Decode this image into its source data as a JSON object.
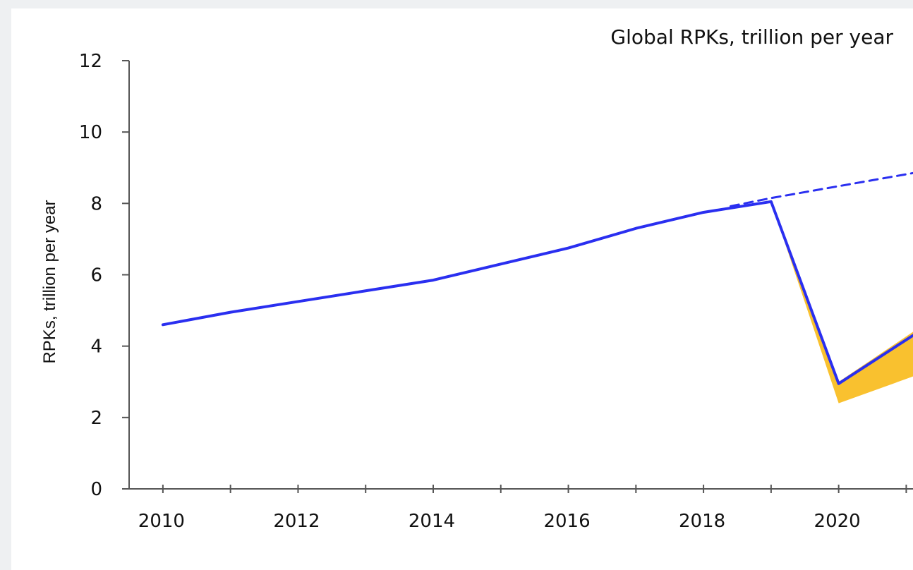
{
  "chart_data": {
    "type": "line",
    "title": "Global RPKs, trillion per year",
    "xlabel": "",
    "ylabel": "RPKs, trillion per year",
    "xlim": [
      2009.5,
      2021.1
    ],
    "ylim": [
      0,
      12
    ],
    "x_ticks": [
      2010,
      2012,
      2014,
      2016,
      2018,
      2020
    ],
    "x_minor_ticks": [
      2010,
      2011,
      2012,
      2013,
      2014,
      2015,
      2016,
      2017,
      2018,
      2019,
      2020,
      2021
    ],
    "y_ticks": [
      0,
      2,
      4,
      6,
      8,
      10,
      12
    ],
    "grid": false,
    "legend": false,
    "colors": {
      "actual": "#2a2ff0",
      "range": "#f9c12f",
      "axis": "#555555"
    },
    "series": [
      {
        "style": "solid",
        "x": [
          2010,
          2011,
          2012,
          2013,
          2014,
          2015,
          2016,
          2017,
          2018,
          2019,
          2020,
          2021.1
        ],
        "values": [
          4.6,
          4.95,
          5.25,
          5.55,
          5.85,
          6.3,
          6.75,
          7.3,
          7.75,
          8.05,
          2.95,
          4.3
        ]
      },
      {
        "style": "dashed",
        "x": [
          2018.4,
          2019,
          2021.1
        ],
        "values": [
          7.92,
          8.15,
          8.85
        ]
      },
      {
        "style": "band",
        "x": [
          2019,
          2020,
          2021.1
        ],
        "upper": [
          8.05,
          3.0,
          4.4
        ],
        "lower": [
          8.05,
          2.4,
          3.15
        ]
      }
    ]
  }
}
